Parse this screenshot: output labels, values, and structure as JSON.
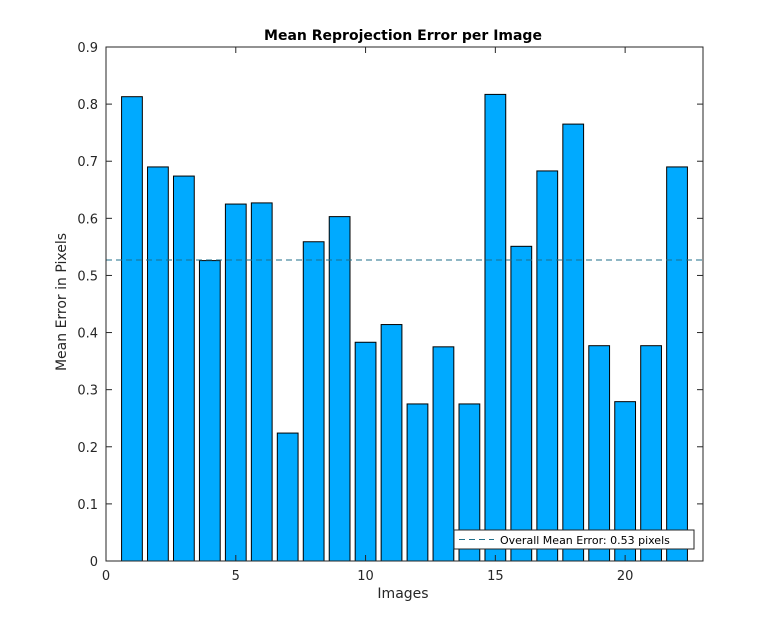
{
  "chart_data": {
    "type": "bar",
    "title": "Mean Reprojection Error per Image",
    "xlabel": "Images",
    "ylabel": "Mean Error in Pixels",
    "xlim": [
      0,
      23
    ],
    "ylim": [
      0,
      0.9
    ],
    "xticks": [
      0,
      5,
      10,
      15,
      20
    ],
    "yticks": [
      0,
      0.1,
      0.2,
      0.3,
      0.4,
      0.5,
      0.6,
      0.7,
      0.8,
      0.9
    ],
    "x": [
      1,
      2,
      3,
      4,
      5,
      6,
      7,
      8,
      9,
      10,
      11,
      12,
      13,
      14,
      15,
      16,
      17,
      18,
      19,
      20,
      21,
      22
    ],
    "values": [
      0.813,
      0.69,
      0.674,
      0.526,
      0.625,
      0.627,
      0.224,
      0.559,
      0.603,
      0.383,
      0.414,
      0.275,
      0.375,
      0.275,
      0.817,
      0.551,
      0.683,
      0.765,
      0.377,
      0.279,
      0.377,
      0.69
    ],
    "overall_mean": 0.527,
    "legend": {
      "label": "Overall Mean Error: 0.53 pixels",
      "placement": "bottom-right"
    },
    "grid": false,
    "colors": {
      "bar_fill": "#00AAFF",
      "bar_edge": "#000000",
      "mean_line": "#1F6F8B",
      "axis": "#262626"
    }
  }
}
